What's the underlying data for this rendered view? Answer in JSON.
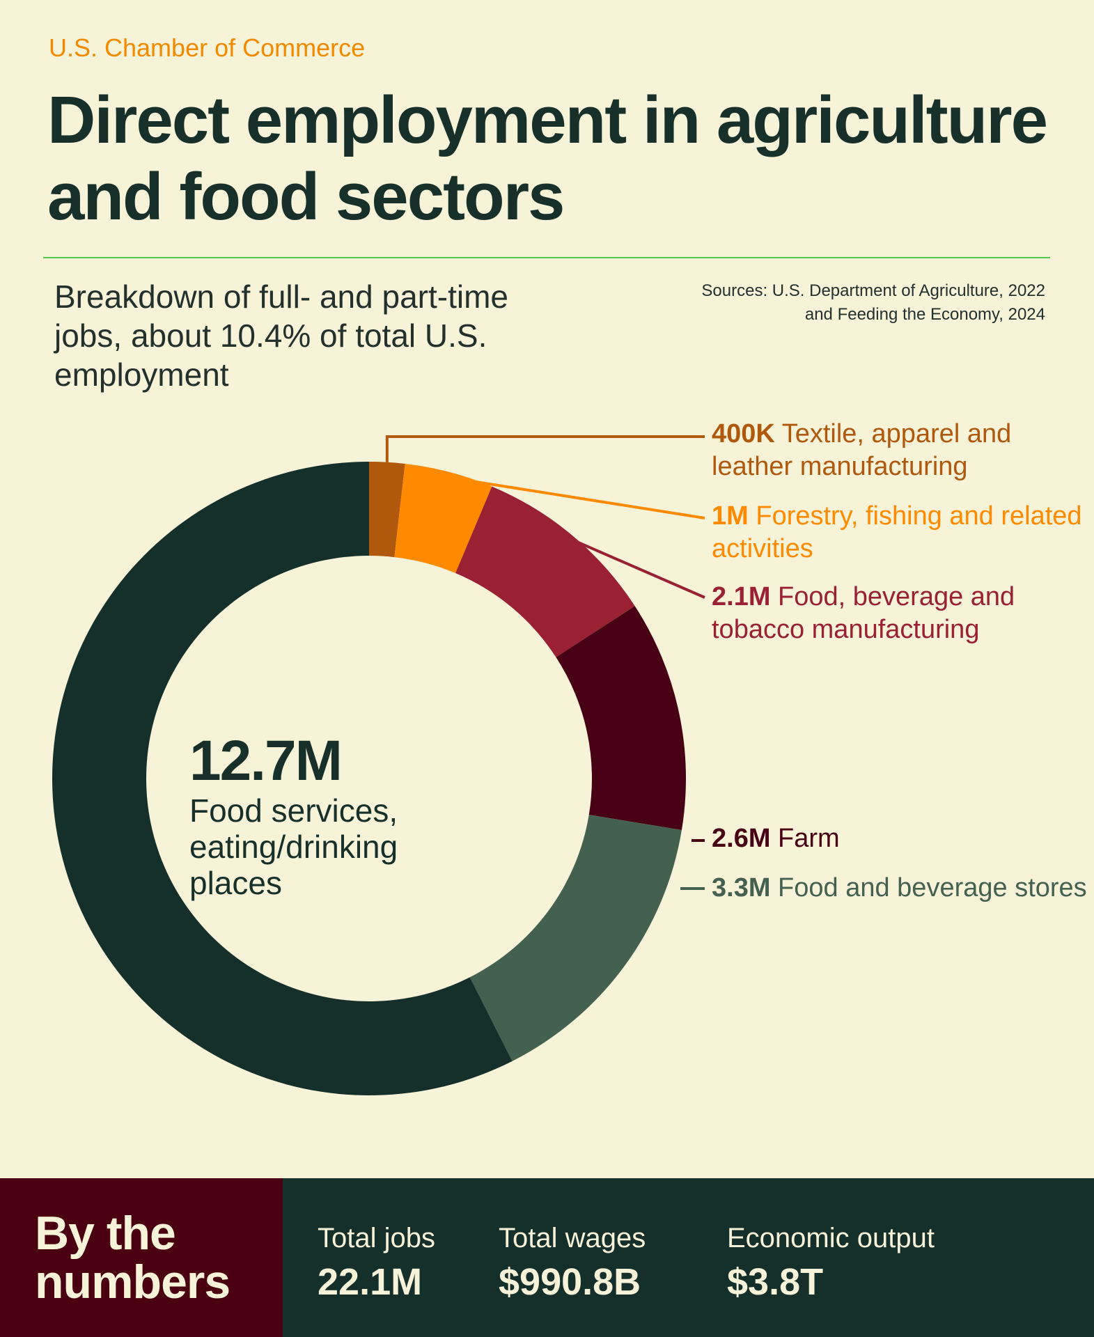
{
  "header": {
    "org": "U.S. Chamber of Commerce",
    "title": "Direct employment in agriculture and food sectors",
    "subtitle": "Breakdown of full- and part-time jobs, about 10.4% of total U.S. employment",
    "sources_line1": "Sources: U.S. Department of Agriculture, 2022",
    "sources_line2": "and Feeding the Economy, 2024"
  },
  "chart_data": {
    "type": "pie",
    "donut": true,
    "unit": "jobs (millions)",
    "slices": [
      {
        "value_label": "400K",
        "name": "Textile, apparel and leather manufacturing",
        "value": 0.4,
        "color": "#b0580c"
      },
      {
        "value_label": "1M",
        "name": "Forestry, fishing and related activities",
        "value": 1.0,
        "color": "#ff8a00"
      },
      {
        "value_label": "2.1M",
        "name": "Food, beverage and tobacco manufacturing",
        "value": 2.1,
        "color": "#9a2133"
      },
      {
        "value_label": "2.6M",
        "name": "Farm",
        "value": 2.6,
        "color": "#480014"
      },
      {
        "value_label": "3.3M",
        "name": "Food and beverage stores",
        "value": 3.3,
        "color": "#446150"
      },
      {
        "value_label": "12.7M",
        "name": "Food services, eating/drinking places",
        "value": 12.7,
        "color": "#15302b"
      }
    ]
  },
  "center": {
    "value": "12.7M",
    "label": "Food services, eating/drinking places"
  },
  "footer": {
    "heading": "By the numbers",
    "stats": [
      {
        "label": "Total jobs",
        "value": "22.1M"
      },
      {
        "label": "Total wages",
        "value": "$990.8B"
      },
      {
        "label": "Economic output",
        "value": "$3.8T"
      }
    ]
  }
}
